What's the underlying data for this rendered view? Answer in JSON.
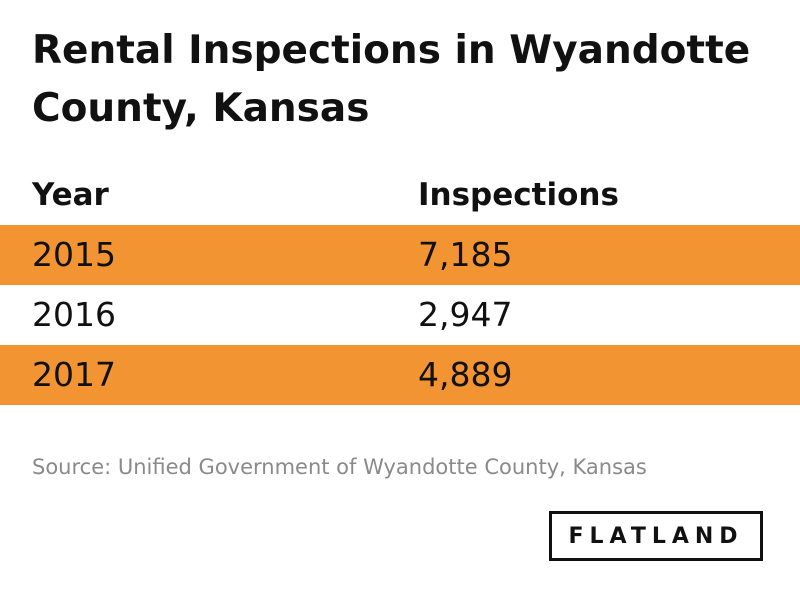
{
  "chart_data": {
    "type": "table",
    "title": "Rental Inspections in Wyandotte County, Kansas",
    "columns": [
      "Year",
      "Inspections"
    ],
    "rows": [
      {
        "year": "2015",
        "inspections": "7,185",
        "highlight": true
      },
      {
        "year": "2016",
        "inspections": "2,947",
        "highlight": false
      },
      {
        "year": "2017",
        "inspections": "4,889",
        "highlight": true
      }
    ],
    "values": [
      7185,
      2947,
      4889
    ],
    "source": "Source: Unified Government of Wyandotte County, Kansas"
  },
  "brand": {
    "logo_text": "FLATLAND"
  },
  "colors": {
    "highlight_row": "#f39433",
    "text": "#111111",
    "source_text": "#8a8a8a"
  }
}
